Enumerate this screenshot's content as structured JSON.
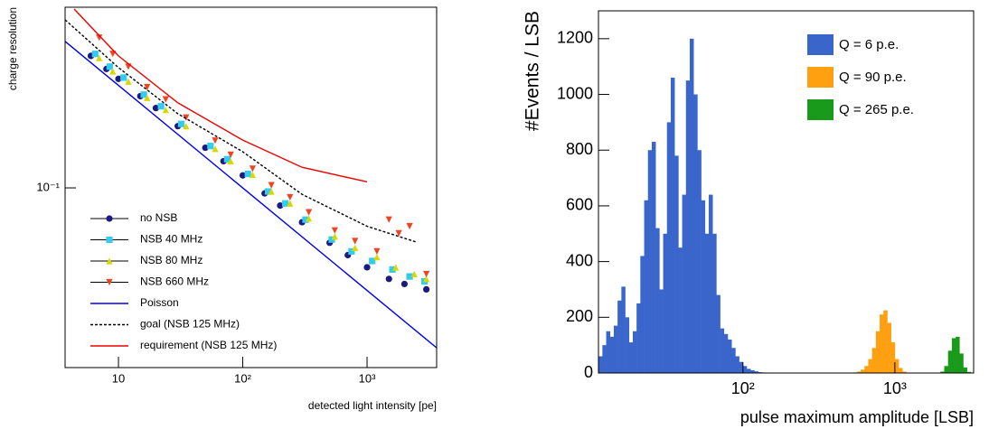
{
  "chart_data": [
    {
      "type": "line",
      "xlabel": "detected light intensity [pe]",
      "ylabel": "charge resolution",
      "xlog": true,
      "ylog": true,
      "xlim": [
        3.72,
        3630
      ],
      "ylim": [
        0.0133,
        0.76
      ],
      "xticks": [
        10,
        {
          "value": 100,
          "label": "10²"
        },
        {
          "value": 1000,
          "label": "10³"
        }
      ],
      "yticks": [
        {
          "value": 0.1,
          "label": "10⁻¹"
        }
      ],
      "legend": "lower left",
      "series": [
        {
          "name": "no NSB",
          "color": "#1a1a80",
          "marker": "circle",
          "x": [
            6,
            8,
            10,
            15,
            20,
            30,
            50,
            70,
            100,
            150,
            200,
            300,
            500,
            700,
            1000,
            1500,
            2000,
            3000
          ],
          "values": [
            0.44,
            0.38,
            0.34,
            0.28,
            0.245,
            0.2,
            0.157,
            0.135,
            0.115,
            0.094,
            0.082,
            0.068,
            0.054,
            0.047,
            0.041,
            0.036,
            0.034,
            0.032
          ]
        },
        {
          "name": "NSB 40 MHz",
          "color": "#33ccee",
          "marker": "square",
          "x": [
            6.5,
            8.5,
            11,
            16,
            22,
            32,
            55,
            75,
            110,
            160,
            220,
            320,
            520,
            750,
            1100,
            1600,
            2200,
            2900
          ],
          "values": [
            0.45,
            0.39,
            0.345,
            0.285,
            0.25,
            0.205,
            0.16,
            0.138,
            0.117,
            0.096,
            0.084,
            0.07,
            0.056,
            0.049,
            0.044,
            0.04,
            0.037,
            0.035
          ]
        },
        {
          "name": "NSB 80 MHz",
          "color": "#d8d800",
          "marker": "triangle-up",
          "x": [
            7,
            9,
            12,
            17,
            24,
            35,
            60,
            80,
            120,
            170,
            240,
            340,
            550,
            800,
            1200,
            1700,
            2400,
            3000
          ],
          "values": [
            0.43,
            0.37,
            0.33,
            0.275,
            0.24,
            0.2,
            0.155,
            0.135,
            0.116,
            0.096,
            0.084,
            0.071,
            0.058,
            0.051,
            0.046,
            0.041,
            0.038,
            0.036
          ]
        },
        {
          "name": "NSB 660 MHz",
          "color": "#ee4422",
          "marker": "triangle-down",
          "x": [
            7,
            9,
            12,
            17,
            24,
            35,
            60,
            80,
            120,
            170,
            240,
            340,
            550,
            800,
            1200,
            1500,
            1800,
            2200,
            3000
          ],
          "values": [
            0.54,
            0.45,
            0.39,
            0.31,
            0.27,
            0.22,
            0.17,
            0.145,
            0.124,
            0.103,
            0.09,
            0.076,
            0.062,
            0.055,
            0.049,
            0.07,
            0.06,
            0.065,
            0.038
          ]
        },
        {
          "name": "Poisson",
          "color": "#0000ee",
          "style": "solid",
          "x": [
            3.72,
            3630
          ],
          "values": [
            0.518,
            0.0166
          ]
        },
        {
          "name": "goal (NSB 125 MHz)",
          "color": "#000000",
          "style": "dotted",
          "x": [
            3.72,
            10,
            30,
            100,
            300,
            1000,
            2500
          ],
          "values": [
            0.66,
            0.386,
            0.23,
            0.15,
            0.093,
            0.065,
            0.0544
          ]
        },
        {
          "name": "requirement (NSB 125 MHz)",
          "color": "#ee0000",
          "style": "solid",
          "x": [
            4.4,
            10,
            30,
            100,
            300,
            1000
          ],
          "values": [
            0.745,
            0.44,
            0.26,
            0.171,
            0.126,
            0.107
          ]
        }
      ]
    },
    {
      "type": "histogram",
      "xlabel": "pulse maximum amplitude [LSB]",
      "ylabel": "#Events / LSB",
      "xlog": true,
      "xlim": [
        11.2,
        3300
      ],
      "ylim": [
        0,
        1300
      ],
      "xticks": [
        {
          "value": 100,
          "label": "10²"
        },
        {
          "value": 1000,
          "label": "10³"
        }
      ],
      "yticks": [
        0,
        200,
        400,
        600,
        800,
        1000,
        1200
      ],
      "legend": "upper right",
      "series": [
        {
          "name": "Q = 6 p.e.",
          "color": "#3a66cc",
          "bins": [
            11.22,
            11.89,
            12.59,
            13.34,
            14.13,
            14.96,
            15.85,
            16.79,
            17.78,
            18.84,
            19.95,
            21.13,
            22.39,
            23.71,
            25.12,
            26.61,
            28.18,
            29.85,
            31.62,
            33.5,
            35.48,
            37.58,
            39.81,
            42.17,
            44.67,
            47.32,
            50.12,
            53.09,
            56.23,
            59.57,
            63.1,
            66.83,
            70.79,
            74.99,
            79.43,
            84.14,
            89.13,
            94.41,
            100,
            105.9,
            112.2,
            118.9,
            125.9,
            133.4,
            141.3,
            149.6,
            158.5
          ],
          "values": [
            60,
            100,
            150,
            130,
            170,
            260,
            310,
            200,
            110,
            150,
            250,
            420,
            620,
            800,
            830,
            520,
            300,
            500,
            900,
            1060,
            780,
            450,
            640,
            1050,
            1200,
            1000,
            800,
            620,
            500,
            640,
            500,
            280,
            160,
            140,
            120,
            90,
            60,
            40,
            25,
            15,
            10,
            6,
            3,
            2,
            1,
            0
          ]
        },
        {
          "name": "Q = 90 p.e.",
          "color": "#ffa010",
          "bins": [
            530.9,
            562.3,
            595.7,
            631,
            668.3,
            707.9,
            749.9,
            794.3,
            841.4,
            891.3,
            944.1,
            1000,
            1059,
            1122,
            1189,
            1259
          ],
          "values": [
            2,
            5,
            12,
            25,
            50,
            90,
            150,
            210,
            225,
            180,
            110,
            50,
            18,
            5,
            1
          ]
        },
        {
          "name": "Q = 265 p.e.",
          "color": "#1a9a1a",
          "bins": [
            1995,
            2113,
            2239,
            2371,
            2512,
            2661,
            2818,
            2985,
            3162
          ],
          "values": [
            5,
            25,
            80,
            125,
            130,
            70,
            20,
            4
          ]
        }
      ]
    }
  ]
}
